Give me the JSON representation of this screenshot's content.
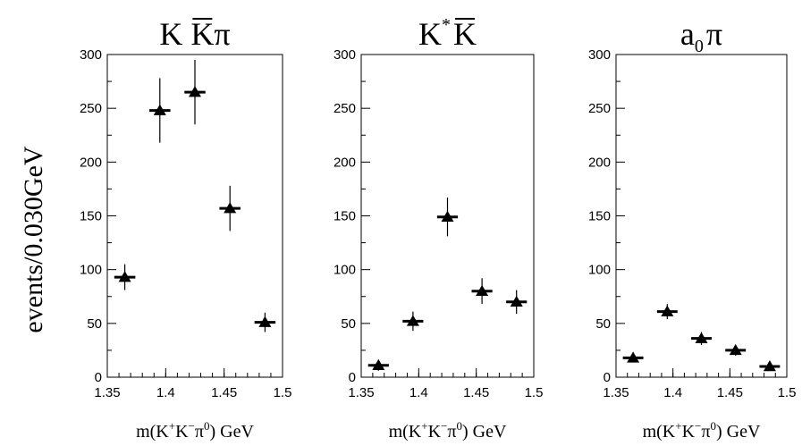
{
  "figure": {
    "ylabel": "events/0.030GeV",
    "xlabel": {
      "pre": "m(K",
      "sup1": "+",
      "mid": "K",
      "sup2": "−",
      "pi": "π",
      "sup3": "0",
      "post": ") GeV"
    }
  },
  "chart_data": [
    {
      "type": "scatter",
      "title": {
        "parts": [
          "K ",
          "K",
          "π"
        ],
        "overline_index": 1
      },
      "x": [
        1.365,
        1.395,
        1.425,
        1.455,
        1.485
      ],
      "y": [
        93,
        248,
        265,
        157,
        51
      ],
      "yerr": [
        12,
        30,
        30,
        21,
        9
      ],
      "xhalfwidth": 0.009,
      "xlim": [
        1.35,
        1.5
      ],
      "ylim": [
        0,
        300
      ],
      "xticks": [
        "1.35",
        "1.4",
        "1.45",
        "1.5"
      ],
      "yticks": [
        "0",
        "50",
        "100",
        "150",
        "200",
        "250",
        "300"
      ],
      "marker": "triangle",
      "color": "#000000"
    },
    {
      "type": "scatter",
      "title": {
        "parts": [
          "K",
          "*",
          "K"
        ],
        "overline_index": 2,
        "superscript_index": 1
      },
      "x": [
        1.365,
        1.395,
        1.425,
        1.455,
        1.485
      ],
      "y": [
        11,
        52,
        149,
        80,
        70
      ],
      "yerr": [
        5,
        9,
        18,
        12,
        11
      ],
      "xhalfwidth": 0.009,
      "xlim": [
        1.35,
        1.5
      ],
      "ylim": [
        0,
        300
      ],
      "xticks": [
        "1.35",
        "1.4",
        "1.45",
        "1.5"
      ],
      "yticks": [
        "0",
        "50",
        "100",
        "150",
        "200",
        "250",
        "300"
      ],
      "marker": "triangle",
      "color": "#000000"
    },
    {
      "type": "scatter",
      "title": {
        "parts": [
          "a",
          "0",
          "π"
        ],
        "subscript_index": 1
      },
      "x": [
        1.365,
        1.395,
        1.425,
        1.455,
        1.485
      ],
      "y": [
        18,
        61,
        36,
        25,
        10
      ],
      "yerr": [
        4,
        7,
        6,
        5,
        3
      ],
      "xhalfwidth": 0.009,
      "xlim": [
        1.35,
        1.5
      ],
      "ylim": [
        0,
        300
      ],
      "xticks": [
        "1.35",
        "1.4",
        "1.45",
        "1.5"
      ],
      "yticks": [
        "0",
        "50",
        "100",
        "150",
        "200",
        "250",
        "300"
      ],
      "marker": "triangle",
      "color": "#000000"
    }
  ]
}
